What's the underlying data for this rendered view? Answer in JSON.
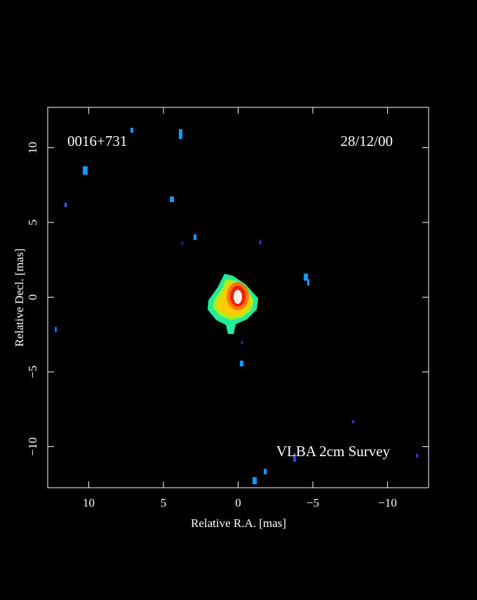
{
  "chart_data": {
    "type": "image",
    "source_label": "0016+731",
    "date_label": "28/12/00",
    "survey_label": "VLBA 2cm Survey",
    "x_label": "Relative R.A. [mas]",
    "y_label": "Relative Decl. [mas]",
    "xlim": [
      12.75,
      -12.75
    ],
    "ylim": [
      -12.75,
      12.7
    ],
    "xticks": [
      10,
      5,
      0,
      {
        "value": -5,
        "label": "−5"
      },
      {
        "value": -10,
        "label": "−10"
      }
    ],
    "yticks": [
      {
        "value": -10,
        "label": "−10"
      },
      {
        "value": -5,
        "label": "−5"
      },
      0,
      5,
      10
    ]
  }
}
